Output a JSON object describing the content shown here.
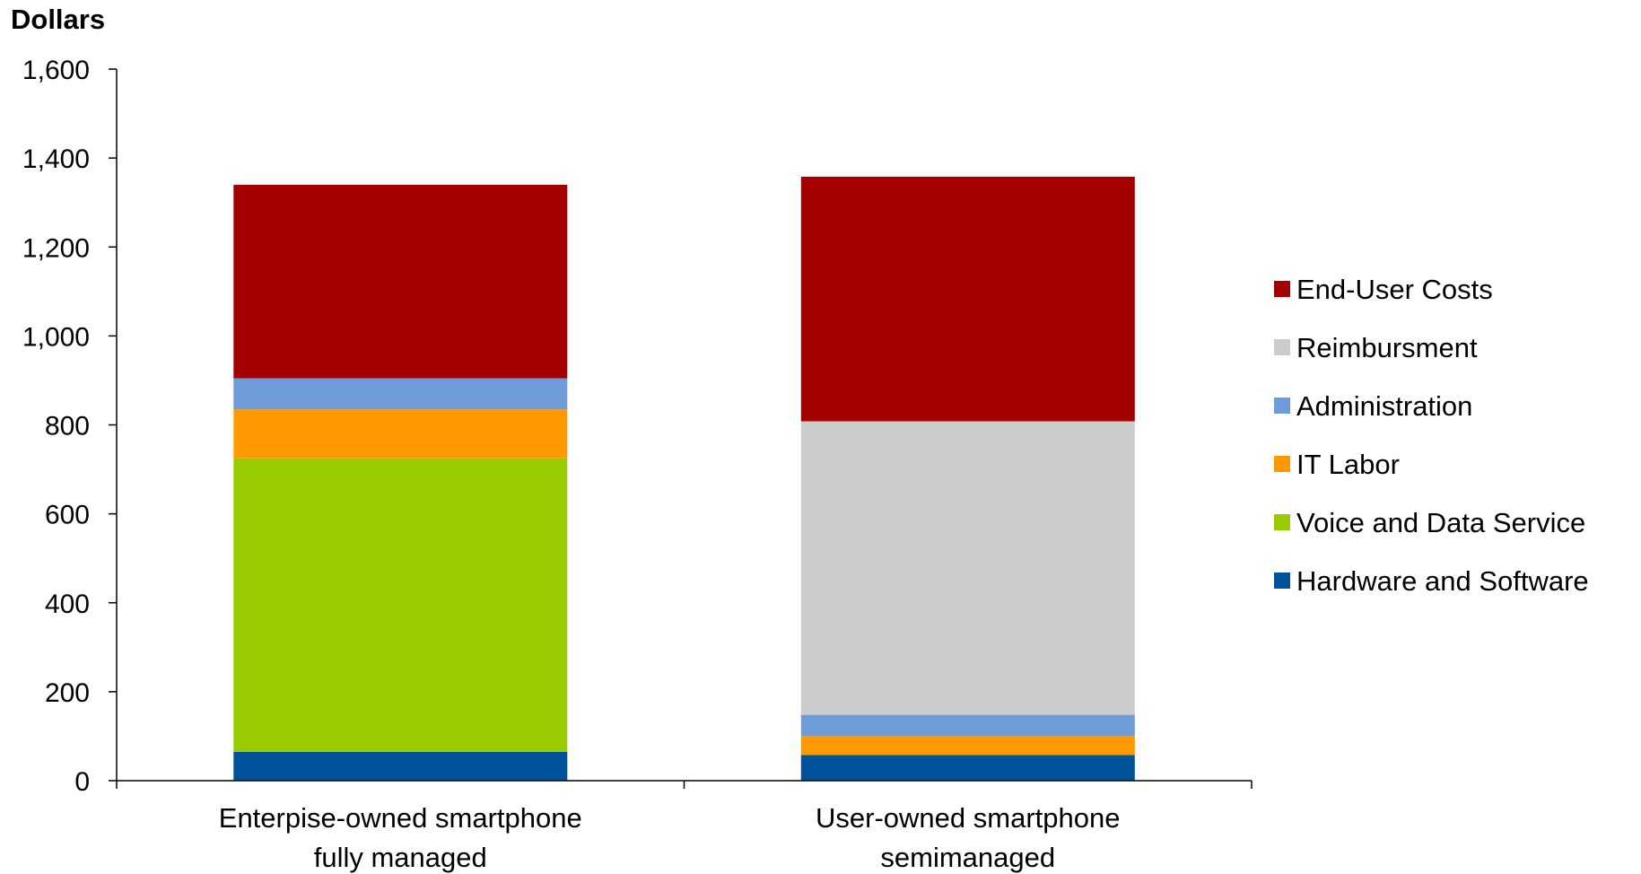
{
  "chart_data": {
    "type": "bar",
    "stacked": true,
    "ylabel": "Dollars",
    "xlabel": "",
    "ylim": [
      0,
      1600
    ],
    "ytick_step": 200,
    "grid": false,
    "legend_position": "right",
    "categories": [
      [
        "Enterpise-owned smartphone",
        "fully managed"
      ],
      [
        "User-owned smartphone",
        "semimanaged"
      ]
    ],
    "series": [
      {
        "name": "Hardware and Software",
        "color": "#00529B",
        "values": [
          65,
          58
        ]
      },
      {
        "name": "Voice and Data Service",
        "color": "#99CC00",
        "values": [
          660,
          0
        ]
      },
      {
        "name": "IT Labor",
        "color": "#FF9900",
        "values": [
          110,
          42
        ]
      },
      {
        "name": "Administration",
        "color": "#6F9BD8",
        "values": [
          70,
          48
        ]
      },
      {
        "name": "Reimbursment",
        "color": "#CCCCCC",
        "values": [
          0,
          660
        ]
      },
      {
        "name": "End-User Costs",
        "color": "#A50000",
        "values": [
          435,
          550
        ]
      }
    ]
  }
}
